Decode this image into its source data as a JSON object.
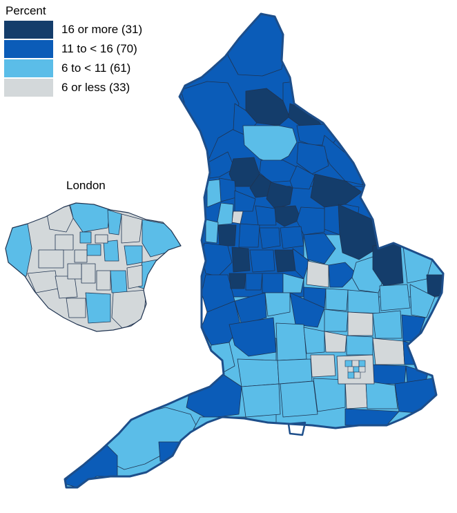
{
  "legend": {
    "title": "Percent",
    "items": [
      {
        "label": "16 or more (31)",
        "color": "#143d6b"
      },
      {
        "label": "11 to < 16 (70)",
        "color": "#0b5cb8"
      },
      {
        "label": "6 to < 11 (61)",
        "color": "#5bbde8"
      },
      {
        "label": "6 or less (33)",
        "color": "#d3d8da"
      }
    ]
  },
  "inset": {
    "title": "London"
  },
  "colors": {
    "border": "#1f3350",
    "outline": "#1d4e8a",
    "darkest": "#143d6b",
    "dark": "#0b5cb8",
    "light": "#5bbde8",
    "grey": "#d3d8da"
  }
}
